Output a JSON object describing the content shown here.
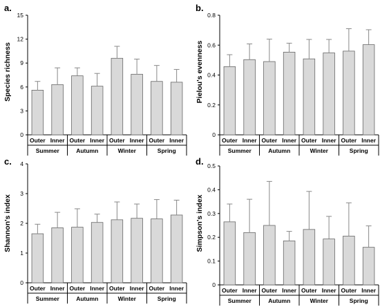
{
  "chart_data": [
    {
      "panel": "a.",
      "type": "bar",
      "ylabel": "Species richness",
      "ylim": [
        0,
        15
      ],
      "yticks": [
        "0",
        "3",
        "6",
        "9",
        "12",
        "15"
      ],
      "categories": [
        "Outer",
        "Inner",
        "Outer",
        "Inner",
        "Outer",
        "Inner",
        "Outer",
        "Inner"
      ],
      "groups": [
        "Summer",
        "Autumn",
        "Winter",
        "Spring"
      ],
      "values": [
        5.6,
        6.3,
        7.4,
        6.1,
        9.6,
        7.6,
        6.7,
        6.6
      ],
      "errors": [
        1.1,
        2.1,
        1.0,
        1.6,
        1.5,
        1.9,
        2.0,
        1.6
      ],
      "bar_color": "#d9d9d9"
    },
    {
      "panel": "b.",
      "type": "bar",
      "ylabel": "Pielou's evenness",
      "ylim": [
        0,
        0.8
      ],
      "yticks": [
        "0",
        "0.2",
        "0.4",
        "0.6",
        "0.8"
      ],
      "categories": [
        "Outer",
        "Inner",
        "Outer",
        "Inner",
        "Outer",
        "Inner",
        "Outer",
        "Inner"
      ],
      "groups": [
        "Summer",
        "Autumn",
        "Winter",
        "Spring"
      ],
      "values": [
        0.456,
        0.503,
        0.49,
        0.553,
        0.508,
        0.548,
        0.56,
        0.603
      ],
      "errors": [
        0.08,
        0.105,
        0.15,
        0.06,
        0.13,
        0.09,
        0.15,
        0.1
      ],
      "bar_color": "#d9d9d9"
    },
    {
      "panel": "c.",
      "type": "bar",
      "ylabel": "Shannon's index",
      "ylim": [
        0,
        4
      ],
      "yticks": [
        "0",
        "1",
        "2",
        "3",
        "4"
      ],
      "categories": [
        "Outer",
        "Inner",
        "Outer",
        "Inner",
        "Outer",
        "Inner",
        "Outer",
        "Inner"
      ],
      "groups": [
        "Summer",
        "Autumn",
        "Winter",
        "Spring"
      ],
      "values": [
        1.65,
        1.85,
        1.87,
        2.03,
        2.12,
        2.17,
        2.15,
        2.28
      ],
      "errors": [
        0.32,
        0.52,
        0.62,
        0.28,
        0.6,
        0.48,
        0.65,
        0.5
      ],
      "bar_color": "#d9d9d9"
    },
    {
      "panel": "d.",
      "type": "bar",
      "ylabel": "Simpson's index",
      "ylim": [
        0,
        0.5
      ],
      "yticks": [
        "0",
        "0.1",
        "0.2",
        "0.3",
        "0.4",
        "0.5"
      ],
      "categories": [
        "Outer",
        "Inner",
        "Outer",
        "Inner",
        "Outer",
        "Inner",
        "Outer",
        "Inner"
      ],
      "groups": [
        "Summer",
        "Autumn",
        "Winter",
        "Spring"
      ],
      "values": [
        0.265,
        0.22,
        0.25,
        0.185,
        0.233,
        0.193,
        0.205,
        0.158
      ],
      "errors": [
        0.075,
        0.14,
        0.185,
        0.04,
        0.16,
        0.095,
        0.14,
        0.09
      ],
      "bar_color": "#d9d9d9"
    }
  ]
}
